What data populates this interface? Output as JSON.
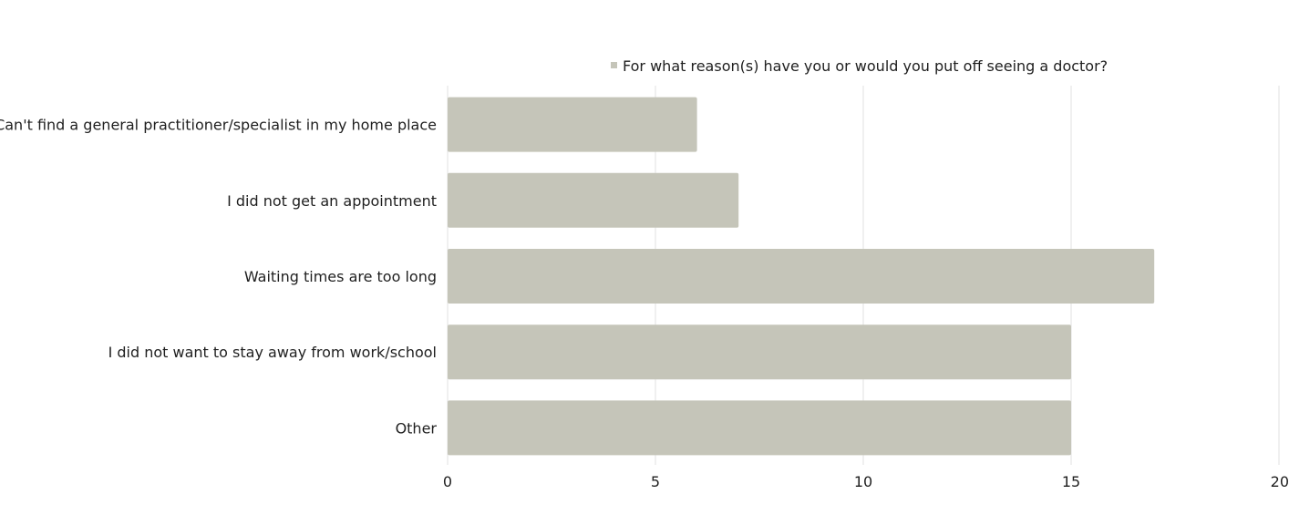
{
  "chart_data": {
    "type": "bar",
    "orientation": "horizontal",
    "categories": [
      "Can't find a general practitioner/specialist in my home place",
      "I did not get an appointment",
      "Waiting times are too long",
      "I did not want to stay away from work/school",
      "Other"
    ],
    "series": [
      {
        "name": "For what reason(s) have you or would you put off seeing a doctor?",
        "values": [
          6,
          7,
          17,
          15,
          15
        ]
      }
    ],
    "xlim": [
      0,
      20
    ],
    "x_ticks": [
      "0",
      "5",
      "10",
      "15",
      "20"
    ],
    "grid": "vertical",
    "legend_position": "top"
  },
  "colors": {
    "bar": "#c5c5b9",
    "grid": "#e2e2e2",
    "legend_marker": "#c5c5b9"
  }
}
